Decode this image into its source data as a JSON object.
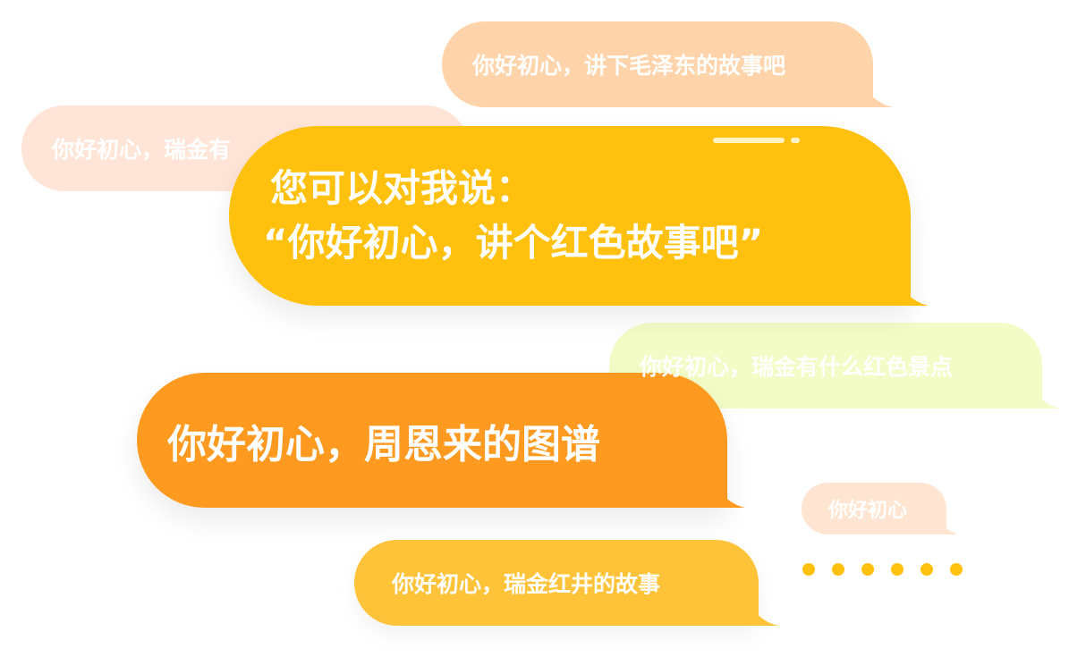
{
  "bubbles": {
    "maozedong": "你好初心，讲下毛泽东的故事吧",
    "ruijin_partial": "你好初心，瑞金有",
    "main_line1": "您可以对我说：",
    "main_line2": "“你好初心，讲个红色故事吧”",
    "scenic": "你好初心，瑞金有什么红色景点",
    "zhouenlai": "你好初心，周恩来的图谱",
    "short": "你好初心",
    "hongjing": "你好初心，瑞金红井的故事"
  },
  "colors": {
    "main_yellow": "#ffc10d",
    "orange": "#ff9a21",
    "peach": "#ffd4ab",
    "light_peach": "#ffe5d7",
    "pale_lime": "#f3fcc6",
    "amber": "#ffc33a",
    "text": "#ffffff"
  },
  "dots_count": 6
}
